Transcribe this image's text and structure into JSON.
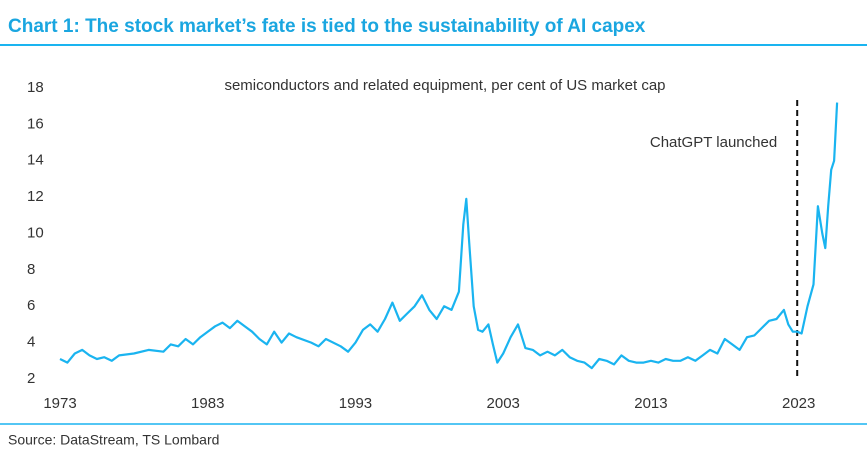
{
  "chart_data": {
    "type": "line",
    "title": "Chart 1: The stock market’s fate is tied to the sustainability of AI capex",
    "subtitle": "semiconductors and related equipment, per cent of US market cap",
    "source": "Source: DataStream, TS Lombard",
    "annotation": {
      "text": "ChatGPT launched",
      "x": 2022.9
    },
    "xlim": [
      1973,
      2026
    ],
    "xticks": [
      1973,
      1983,
      1993,
      2003,
      2013,
      2023
    ],
    "ylim": [
      2,
      18
    ],
    "yticks": [
      2,
      4,
      6,
      8,
      10,
      12,
      14,
      16,
      18
    ],
    "grid": false,
    "x": [
      1973.0,
      1973.5,
      1974,
      1974.5,
      1975,
      1975.5,
      1976,
      1976.5,
      1977,
      1978,
      1979,
      1980,
      1980.5,
      1981,
      1981.5,
      1982,
      1982.5,
      1983,
      1983.5,
      1984,
      1984.5,
      1985,
      1985.5,
      1986,
      1986.5,
      1987,
      1987.5,
      1988,
      1988.5,
      1989,
      1990,
      1990.5,
      1991,
      1992,
      1992.5,
      1993,
      1993.5,
      1994,
      1994.5,
      1995,
      1995.5,
      1996,
      1996.5,
      1997,
      1997.5,
      1998,
      1998.5,
      1999,
      1999.5,
      2000,
      2000.3,
      2000.5,
      2000.7,
      2001,
      2001.3,
      2001.6,
      2002,
      2002.3,
      2002.6,
      2003,
      2003.5,
      2004,
      2004.5,
      2005,
      2005.5,
      2006,
      2006.5,
      2007,
      2007.5,
      2008,
      2008.5,
      2009,
      2009.5,
      2010,
      2010.5,
      2011,
      2011.5,
      2012,
      2012.5,
      2013,
      2013.5,
      2014,
      2014.5,
      2015,
      2015.5,
      2016,
      2016.5,
      2017,
      2017.5,
      2018,
      2018.5,
      2019,
      2019.5,
      2020,
      2020.5,
      2021,
      2021.5,
      2022,
      2022.3,
      2022.6,
      2022.9,
      2023.2,
      2023.6,
      2024,
      2024.3,
      2024.6,
      2024.8,
      2025,
      2025.2,
      2025.4,
      2025.6
    ],
    "series": [
      {
        "name": "semiconductors and related equipment",
        "color": "#1ab4f0",
        "values": [
          3.1,
          2.9,
          3.4,
          3.6,
          3.3,
          3.1,
          3.2,
          3.0,
          3.3,
          3.4,
          3.6,
          3.5,
          3.9,
          3.8,
          4.2,
          3.9,
          4.3,
          4.6,
          4.9,
          5.1,
          4.8,
          5.2,
          4.9,
          4.6,
          4.2,
          3.9,
          4.6,
          4.0,
          4.5,
          4.3,
          4.0,
          3.8,
          4.2,
          3.8,
          3.5,
          4.0,
          4.7,
          5.0,
          4.6,
          5.3,
          6.2,
          5.2,
          5.6,
          6.0,
          6.6,
          5.8,
          5.3,
          6.0,
          5.8,
          6.8,
          10.5,
          11.9,
          9.5,
          6.0,
          4.7,
          4.6,
          5.0,
          3.9,
          2.9,
          3.4,
          4.3,
          5.0,
          3.7,
          3.6,
          3.3,
          3.5,
          3.3,
          3.6,
          3.2,
          3.0,
          2.9,
          2.6,
          3.1,
          3.0,
          2.8,
          3.3,
          3.0,
          2.9,
          2.9,
          3.0,
          2.9,
          3.1,
          3.0,
          3.0,
          3.2,
          3.0,
          3.3,
          3.6,
          3.4,
          4.2,
          3.9,
          3.6,
          4.3,
          4.4,
          4.8,
          5.2,
          5.3,
          5.8,
          5.0,
          4.6,
          4.6,
          4.5,
          6.0,
          7.2,
          11.5,
          10.0,
          9.2,
          11.5,
          13.5,
          14.0,
          17.2
        ]
      }
    ]
  }
}
